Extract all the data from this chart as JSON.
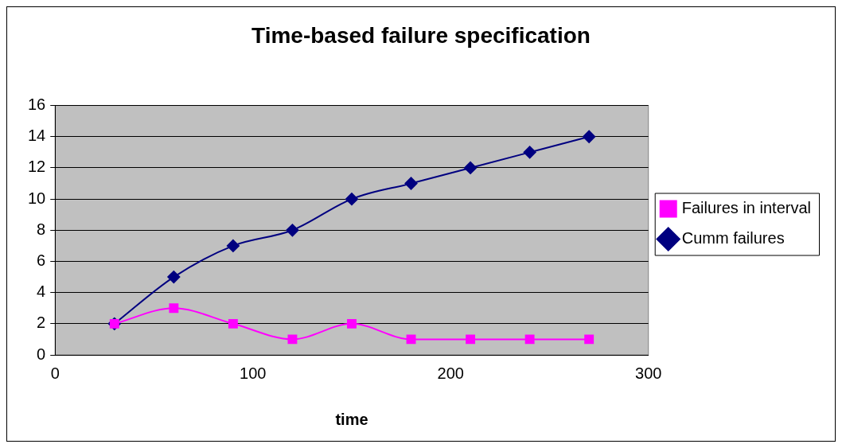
{
  "chart_data": {
    "type": "line",
    "title": "Time-based failure specification",
    "xlabel": "time",
    "x": [
      30,
      60,
      90,
      120,
      150,
      180,
      210,
      240,
      270
    ],
    "series": [
      {
        "name": "Cumm failures",
        "color": "#000080",
        "marker": "diamond",
        "values": [
          2,
          5,
          7,
          8,
          10,
          11,
          12,
          13,
          14
        ]
      },
      {
        "name": "Failures in interval",
        "color": "#ff00ff",
        "marker": "square",
        "values": [
          2,
          3,
          2,
          1,
          2,
          1,
          1,
          1,
          1
        ]
      }
    ],
    "xlim": [
      0,
      300
    ],
    "xticks": [
      0,
      100,
      200,
      300
    ],
    "ylim": [
      0,
      16
    ],
    "yticks": [
      0,
      2,
      4,
      6,
      8,
      10,
      12,
      14,
      16
    ],
    "grid": "y",
    "legend": "right"
  }
}
